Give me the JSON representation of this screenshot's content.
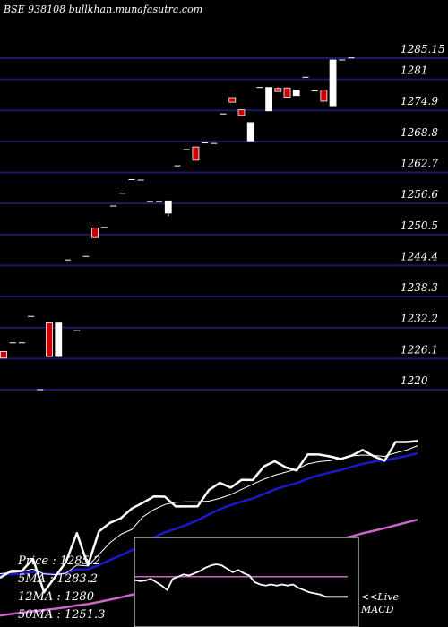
{
  "title": "BSE 938108 bullkhan.munafasutra.com",
  "stats": {
    "price": "Price   :  1285.2",
    "ma5": "5MA : 1283.2",
    "ma12": "12MA : 1280",
    "ma50": "50MA : 1251.3"
  },
  "macd_label": [
    "<<Live",
    "MACD"
  ],
  "colors": {
    "background": "#000000",
    "gridline": "#1a1a66",
    "up_candle": "#ffffff",
    "down_candle": "#cc0000",
    "close_line": "#ffffff",
    "ma5_line": "#ffffff",
    "ma12_line": "#1a1acc",
    "ma50_line": "#cc66cc",
    "macd_line": "#ffffff",
    "macd_signal": "#cc66cc"
  },
  "chart_data": [
    {
      "type": "candlestick",
      "title": "BSE 938108 bullkhan.munafasutra.com",
      "price_levels": [
        1285.15,
        1281,
        1274.9,
        1268.8,
        1262.7,
        1256.6,
        1250.5,
        1244.4,
        1238.3,
        1232.2,
        1226.1,
        1220
      ],
      "price_level_labels": [
        "1285.15",
        "1281",
        "1274.9",
        "1268.8",
        "1262.7",
        "1256.6",
        "1250.5",
        "1244.4",
        "1238.3",
        "1232.2",
        "1226.1",
        "1220"
      ],
      "ylim": [
        1220,
        1285.15
      ],
      "candles": [
        {
          "o": 1227.5,
          "h": 1227.5,
          "l": 1226.2,
          "c": 1226.2
        },
        {
          "o": 1229.2,
          "h": 1229.2,
          "l": 1229.2,
          "c": 1229.2
        },
        {
          "o": 1229.2,
          "h": 1229.2,
          "l": 1229.2,
          "c": 1229.2
        },
        {
          "o": 1234.4,
          "h": 1234.4,
          "l": 1234.4,
          "c": 1234.4
        },
        {
          "o": 1220.0,
          "h": 1220.0,
          "l": 1220.0,
          "c": 1220.0
        },
        {
          "o": 1233.1,
          "h": 1233.1,
          "l": 1226.5,
          "c": 1226.5
        },
        {
          "o": 1226.5,
          "h": 1233.1,
          "l": 1226.5,
          "c": 1233.1
        },
        {
          "o": 1245.5,
          "h": 1245.5,
          "l": 1245.5,
          "c": 1245.5
        },
        {
          "o": 1231.6,
          "h": 1231.6,
          "l": 1231.6,
          "c": 1231.6
        },
        {
          "o": 1246.2,
          "h": 1246.2,
          "l": 1246.2,
          "c": 1246.2
        },
        {
          "o": 1251.8,
          "h": 1251.8,
          "l": 1249.9,
          "c": 1249.9
        },
        {
          "o": 1251.9,
          "h": 1251.9,
          "l": 1251.9,
          "c": 1251.9
        },
        {
          "o": 1256.1,
          "h": 1256.1,
          "l": 1256.1,
          "c": 1256.1
        },
        {
          "o": 1258.6,
          "h": 1258.6,
          "l": 1258.6,
          "c": 1258.6
        },
        {
          "o": 1261.3,
          "h": 1261.3,
          "l": 1261.3,
          "c": 1261.3
        },
        {
          "o": 1261.2,
          "h": 1261.2,
          "l": 1261.2,
          "c": 1261.2
        },
        {
          "o": 1257.0,
          "h": 1257.0,
          "l": 1257.0,
          "c": 1257.0
        },
        {
          "o": 1257.0,
          "h": 1257.0,
          "l": 1257.0,
          "c": 1257.0
        },
        {
          "o": 1254.7,
          "h": 1257.1,
          "l": 1254.1,
          "c": 1257.1
        },
        {
          "o": 1264.0,
          "h": 1264.0,
          "l": 1264.0,
          "c": 1264.0
        },
        {
          "o": 1267.2,
          "h": 1267.2,
          "l": 1267.2,
          "c": 1267.2
        },
        {
          "o": 1267.7,
          "h": 1267.7,
          "l": 1265.1,
          "c": 1265.1
        },
        {
          "o": 1268.5,
          "h": 1268.5,
          "l": 1268.5,
          "c": 1268.5
        },
        {
          "o": 1268.4,
          "h": 1268.4,
          "l": 1268.4,
          "c": 1268.4
        },
        {
          "o": 1274.2,
          "h": 1274.2,
          "l": 1274.2,
          "c": 1274.2
        },
        {
          "o": 1277.4,
          "h": 1277.4,
          "l": 1276.5,
          "c": 1276.5
        },
        {
          "o": 1275.0,
          "h": 1275.0,
          "l": 1273.9,
          "c": 1273.9
        },
        {
          "o": 1268.9,
          "h": 1272.5,
          "l": 1268.9,
          "c": 1272.5
        },
        {
          "o": 1279.4,
          "h": 1279.4,
          "l": 1279.4,
          "c": 1279.4
        },
        {
          "o": 1274.8,
          "h": 1279.4,
          "l": 1274.8,
          "c": 1279.4
        },
        {
          "o": 1279.2,
          "h": 1279.4,
          "l": 1278.6,
          "c": 1278.6
        },
        {
          "o": 1279.3,
          "h": 1279.3,
          "l": 1277.5,
          "c": 1277.5
        },
        {
          "o": 1277.8,
          "h": 1278.9,
          "l": 1277.8,
          "c": 1278.9
        },
        {
          "o": 1281.4,
          "h": 1281.4,
          "l": 1281.4,
          "c": 1281.4
        },
        {
          "o": 1278.7,
          "h": 1278.7,
          "l": 1278.7,
          "c": 1278.7
        },
        {
          "o": 1278.9,
          "h": 1278.9,
          "l": 1276.7,
          "c": 1276.7
        },
        {
          "o": 1275.8,
          "h": 1284.8,
          "l": 1275.8,
          "c": 1284.8
        },
        {
          "o": 1284.8,
          "h": 1284.8,
          "l": 1284.8,
          "c": 1284.8
        },
        {
          "o": 1285.2,
          "h": 1285.2,
          "l": 1285.2,
          "c": 1285.2
        }
      ],
      "overlay": {
        "close": [
          1226.2,
          1229.2,
          1229.2,
          1234.4,
          1220.0,
          1226.5,
          1233.1,
          1245.5,
          1231.6,
          1246.2,
          1249.9,
          1251.9,
          1256.1,
          1258.6,
          1261.3,
          1261.2,
          1257.0,
          1257.0,
          1257.1,
          1264.0,
          1267.2,
          1265.1,
          1268.5,
          1268.4,
          1274.2,
          1276.5,
          1273.9,
          1272.5,
          1279.4,
          1279.4,
          1278.6,
          1277.5,
          1278.9,
          1281.4,
          1278.7,
          1276.7,
          1284.8,
          1284.8,
          1285.2
        ],
        "ma5": [
          1228.0,
          1228.5,
          1228.9,
          1230.0,
          1227.9,
          1227.6,
          1228.2,
          1231.7,
          1231.3,
          1236.2,
          1241.3,
          1245.0,
          1247.1,
          1252.5,
          1255.6,
          1257.8,
          1258.8,
          1259.0,
          1259.0,
          1259.3,
          1260.5,
          1262.1,
          1264.4,
          1266.6,
          1268.7,
          1270.5,
          1271.8,
          1273.1,
          1275.3,
          1276.3,
          1276.8,
          1277.5,
          1278.8,
          1279.2,
          1279.0,
          1278.6,
          1280.1,
          1281.3,
          1283.2
        ],
        "ma12": [
          1227.5,
          1227.8,
          1228.0,
          1228.7,
          1228.0,
          1227.8,
          1228.2,
          1229.8,
          1229.9,
          1231.7,
          1233.9,
          1235.9,
          1238.1,
          1240.6,
          1243.6,
          1245.8,
          1247.4,
          1249.1,
          1251.1,
          1253.5,
          1255.8,
          1257.6,
          1259.1,
          1260.5,
          1262.3,
          1264.3,
          1265.8,
          1267.1,
          1268.9,
          1270.4,
          1271.6,
          1272.7,
          1274.1,
          1275.4,
          1276.3,
          1276.9,
          1277.8,
          1278.8,
          1280.0
        ],
        "ma50": [
          1210.0,
          1210.6,
          1211.2,
          1211.8,
          1212.3,
          1212.9,
          1213.5,
          1214.3,
          1214.9,
          1215.8,
          1216.8,
          1217.8,
          1218.9,
          1220.1,
          1221.4,
          1222.6,
          1223.6,
          1224.7,
          1225.7,
          1227.0,
          1228.3,
          1229.5,
          1230.8,
          1232.1,
          1233.5,
          1234.9,
          1236.2,
          1237.5,
          1238.9,
          1240.3,
          1241.6,
          1242.9,
          1244.1,
          1245.4,
          1246.5,
          1247.6,
          1248.9,
          1250.1,
          1251.3
        ]
      }
    },
    {
      "type": "line",
      "title": "MACD",
      "x": [
        1,
        2,
        3,
        4,
        5,
        6,
        7,
        8,
        9,
        10,
        11,
        12,
        13,
        14,
        15,
        16,
        17,
        18,
        19,
        20,
        21,
        22,
        23,
        24,
        25,
        26,
        27,
        28,
        29,
        30,
        31,
        32,
        33,
        34,
        35,
        36,
        37,
        38,
        39,
        40
      ],
      "series": [
        {
          "values": [
            0.2,
            0.1,
            0.15,
            0.3,
            0.0,
            -0.3,
            -0.7,
            0.3,
            0.5,
            0.7,
            0.6,
            0.8,
            1.0,
            1.3,
            1.5,
            1.6,
            1.5,
            1.2,
            0.9,
            1.1,
            0.8,
            0.6,
            0.0,
            -0.2,
            -0.3,
            -0.2,
            -0.3,
            -0.2,
            -0.3,
            -0.2,
            -0.5,
            -0.7,
            -0.9,
            -1.0,
            -1.1,
            -1.3,
            -1.3,
            -1.3,
            -1.3,
            -1.3
          ]
        },
        {
          "values": [
            0.5,
            0.5,
            0.5,
            0.5,
            0.5,
            0.5,
            0.5,
            0.5,
            0.5,
            0.5,
            0.5,
            0.5,
            0.5,
            0.5,
            0.5,
            0.5,
            0.5,
            0.5,
            0.5,
            0.5,
            0.5,
            0.5,
            0.5,
            0.5,
            0.5,
            0.5,
            0.5,
            0.5,
            0.5,
            0.5,
            0.5,
            0.5,
            0.5,
            0.5,
            0.5,
            0.5,
            0.5,
            0.5,
            0.5,
            0.5
          ]
        }
      ],
      "ylim": [
        -4,
        4
      ]
    }
  ]
}
